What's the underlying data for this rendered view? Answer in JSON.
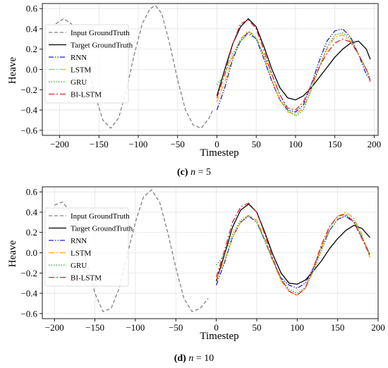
{
  "chart_data": [
    {
      "type": "line",
      "caption_letter": "(c)",
      "caption_var": "n",
      "caption_rest": " = 5",
      "xlabel": "Timestep",
      "ylabel": "Heave",
      "xlim": [
        -222,
        205
      ],
      "ylim": [
        -0.65,
        0.65
      ],
      "xticks": [
        -200,
        -150,
        -100,
        -50,
        0,
        50,
        100,
        150,
        200
      ],
      "yticks": [
        -0.6,
        -0.4,
        -0.2,
        0.0,
        0.2,
        0.4,
        0.6
      ],
      "grid": true,
      "legend_position": "upper-left",
      "series": [
        {
          "name": "Input GroundTruth",
          "color": "#808080",
          "style": "dashed",
          "x": [
            -205,
            -195,
            -185,
            -175,
            -165,
            -155,
            -145,
            -135,
            -125,
            -115,
            -105,
            -95,
            -85,
            -78,
            -70,
            -60,
            -50,
            -40,
            -30,
            -20,
            -10,
            -5
          ],
          "y": [
            0.45,
            0.5,
            0.45,
            0.3,
            0.05,
            -0.25,
            -0.5,
            -0.58,
            -0.48,
            -0.2,
            0.15,
            0.45,
            0.6,
            0.63,
            0.55,
            0.25,
            -0.1,
            -0.4,
            -0.55,
            -0.58,
            -0.48,
            -0.4
          ]
        },
        {
          "name": "Target GroundTruth",
          "color": "#000000",
          "style": "solid",
          "x": [
            0,
            10,
            20,
            30,
            40,
            50,
            60,
            70,
            80,
            90,
            100,
            110,
            120,
            130,
            140,
            150,
            160,
            170,
            180,
            190,
            195
          ],
          "y": [
            -0.26,
            0.0,
            0.25,
            0.42,
            0.5,
            0.42,
            0.22,
            0.0,
            -0.18,
            -0.28,
            -0.3,
            -0.26,
            -0.18,
            -0.08,
            0.02,
            0.12,
            0.2,
            0.26,
            0.28,
            0.2,
            0.1
          ]
        },
        {
          "name": "RNN",
          "color": "#1f1fcc",
          "style": "dashdotdot",
          "x": [
            0,
            10,
            20,
            30,
            40,
            50,
            60,
            70,
            80,
            90,
            100,
            110,
            120,
            130,
            140,
            150,
            160,
            170,
            180,
            190,
            195
          ],
          "y": [
            -0.4,
            -0.18,
            0.1,
            0.28,
            0.37,
            0.3,
            0.1,
            -0.12,
            -0.3,
            -0.4,
            -0.42,
            -0.35,
            -0.15,
            0.08,
            0.28,
            0.38,
            0.4,
            0.32,
            0.15,
            -0.05,
            -0.1
          ]
        },
        {
          "name": "LSTM",
          "color": "#ffa500",
          "style": "dashdot",
          "x": [
            0,
            10,
            20,
            30,
            40,
            50,
            60,
            70,
            80,
            90,
            100,
            110,
            120,
            130,
            140,
            150,
            160,
            170,
            180,
            190,
            195
          ],
          "y": [
            -0.32,
            -0.12,
            0.12,
            0.3,
            0.38,
            0.32,
            0.12,
            -0.1,
            -0.3,
            -0.42,
            -0.44,
            -0.38,
            -0.2,
            0.02,
            0.2,
            0.32,
            0.34,
            0.28,
            0.15,
            0.0,
            -0.08
          ]
        },
        {
          "name": "GRU",
          "color": "#22aa22",
          "style": "dotted",
          "x": [
            0,
            10,
            20,
            30,
            40,
            50,
            60,
            70,
            80,
            90,
            100,
            110,
            120,
            130,
            140,
            150,
            160,
            170,
            180,
            190,
            195
          ],
          "y": [
            -0.15,
            -0.05,
            0.15,
            0.28,
            0.35,
            0.3,
            0.14,
            -0.05,
            -0.25,
            -0.4,
            -0.46,
            -0.4,
            -0.2,
            0.02,
            0.22,
            0.34,
            0.36,
            0.3,
            0.15,
            0.0,
            -0.1
          ]
        },
        {
          "name": "BI-LSTM",
          "color": "#e8202a",
          "style": "dashdot",
          "x": [
            0,
            10,
            20,
            30,
            40,
            50,
            60,
            70,
            80,
            90,
            100,
            110,
            120,
            130,
            140,
            150,
            160,
            170,
            180,
            190,
            195
          ],
          "y": [
            -0.28,
            -0.05,
            0.25,
            0.45,
            0.49,
            0.4,
            0.18,
            -0.05,
            -0.25,
            -0.38,
            -0.4,
            -0.32,
            -0.15,
            0.02,
            0.16,
            0.26,
            0.3,
            0.27,
            0.15,
            0.0,
            -0.12
          ]
        }
      ]
    },
    {
      "type": "line",
      "caption_letter": "(d)",
      "caption_var": "n",
      "caption_rest": " = 10",
      "xlabel": "Timestep",
      "ylabel": "Heave",
      "xlim": [
        -215,
        200
      ],
      "ylim": [
        -0.65,
        0.65
      ],
      "xticks": [
        -200,
        -150,
        -100,
        -50,
        0,
        50,
        100,
        150,
        200
      ],
      "yticks": [
        -0.6,
        -0.4,
        -0.2,
        0.0,
        0.2,
        0.4,
        0.6
      ],
      "grid": true,
      "legend_position": "upper-left",
      "series": [
        {
          "name": "Input GroundTruth",
          "color": "#808080",
          "style": "dashed",
          "x": [
            -200,
            -190,
            -180,
            -170,
            -160,
            -150,
            -140,
            -130,
            -120,
            -110,
            -100,
            -90,
            -80,
            -70,
            -60,
            -50,
            -40,
            -30,
            -20,
            -10
          ],
          "y": [
            0.47,
            0.5,
            0.4,
            0.18,
            -0.1,
            -0.4,
            -0.58,
            -0.55,
            -0.35,
            -0.02,
            0.3,
            0.55,
            0.62,
            0.5,
            0.2,
            -0.15,
            -0.45,
            -0.58,
            -0.55,
            -0.45
          ]
        },
        {
          "name": "Target GroundTruth",
          "color": "#000000",
          "style": "solid",
          "x": [
            0,
            10,
            20,
            30,
            40,
            50,
            60,
            70,
            80,
            90,
            100,
            110,
            120,
            130,
            140,
            150,
            160,
            170,
            180,
            190
          ],
          "y": [
            -0.28,
            -0.02,
            0.25,
            0.42,
            0.48,
            0.4,
            0.2,
            -0.02,
            -0.2,
            -0.3,
            -0.31,
            -0.27,
            -0.18,
            -0.08,
            0.04,
            0.14,
            0.22,
            0.27,
            0.24,
            0.15
          ]
        },
        {
          "name": "RNN",
          "color": "#1f1fcc",
          "style": "dashdotdot",
          "x": [
            0,
            10,
            20,
            30,
            40,
            50,
            60,
            70,
            80,
            90,
            100,
            110,
            120,
            130,
            140,
            150,
            160,
            170,
            180,
            190
          ],
          "y": [
            -0.32,
            -0.1,
            0.15,
            0.3,
            0.36,
            0.3,
            0.12,
            -0.08,
            -0.25,
            -0.32,
            -0.35,
            -0.3,
            -0.15,
            0.05,
            0.22,
            0.33,
            0.36,
            0.3,
            0.15,
            -0.02
          ]
        },
        {
          "name": "LSTM",
          "color": "#ffa500",
          "style": "dashdot",
          "x": [
            0,
            10,
            20,
            30,
            40,
            50,
            60,
            70,
            80,
            90,
            100,
            110,
            120,
            130,
            140,
            150,
            160,
            170,
            180,
            190
          ],
          "y": [
            -0.26,
            -0.08,
            0.15,
            0.3,
            0.37,
            0.32,
            0.14,
            -0.08,
            -0.28,
            -0.38,
            -0.42,
            -0.35,
            -0.18,
            0.05,
            0.25,
            0.36,
            0.4,
            0.34,
            0.18,
            -0.05
          ]
        },
        {
          "name": "GRU",
          "color": "#22aa22",
          "style": "dotted",
          "x": [
            0,
            10,
            20,
            30,
            40,
            50,
            60,
            70,
            80,
            90,
            100,
            110,
            120,
            130,
            140,
            150,
            160,
            170,
            180,
            190
          ],
          "y": [
            -0.12,
            -0.02,
            0.18,
            0.32,
            0.37,
            0.3,
            0.12,
            -0.08,
            -0.26,
            -0.36,
            -0.4,
            -0.34,
            -0.18,
            0.02,
            0.22,
            0.33,
            0.37,
            0.32,
            0.16,
            -0.02
          ]
        },
        {
          "name": "BI-LSTM",
          "color": "#e8202a",
          "style": "dashdot",
          "x": [
            0,
            10,
            20,
            30,
            40,
            50,
            60,
            70,
            80,
            90,
            100,
            110,
            120,
            130,
            140,
            150,
            160,
            170,
            180,
            190
          ],
          "y": [
            -0.24,
            0.02,
            0.3,
            0.45,
            0.49,
            0.4,
            0.18,
            -0.06,
            -0.26,
            -0.38,
            -0.42,
            -0.35,
            -0.15,
            0.08,
            0.26,
            0.36,
            0.38,
            0.3,
            0.14,
            -0.03
          ]
        }
      ]
    }
  ]
}
